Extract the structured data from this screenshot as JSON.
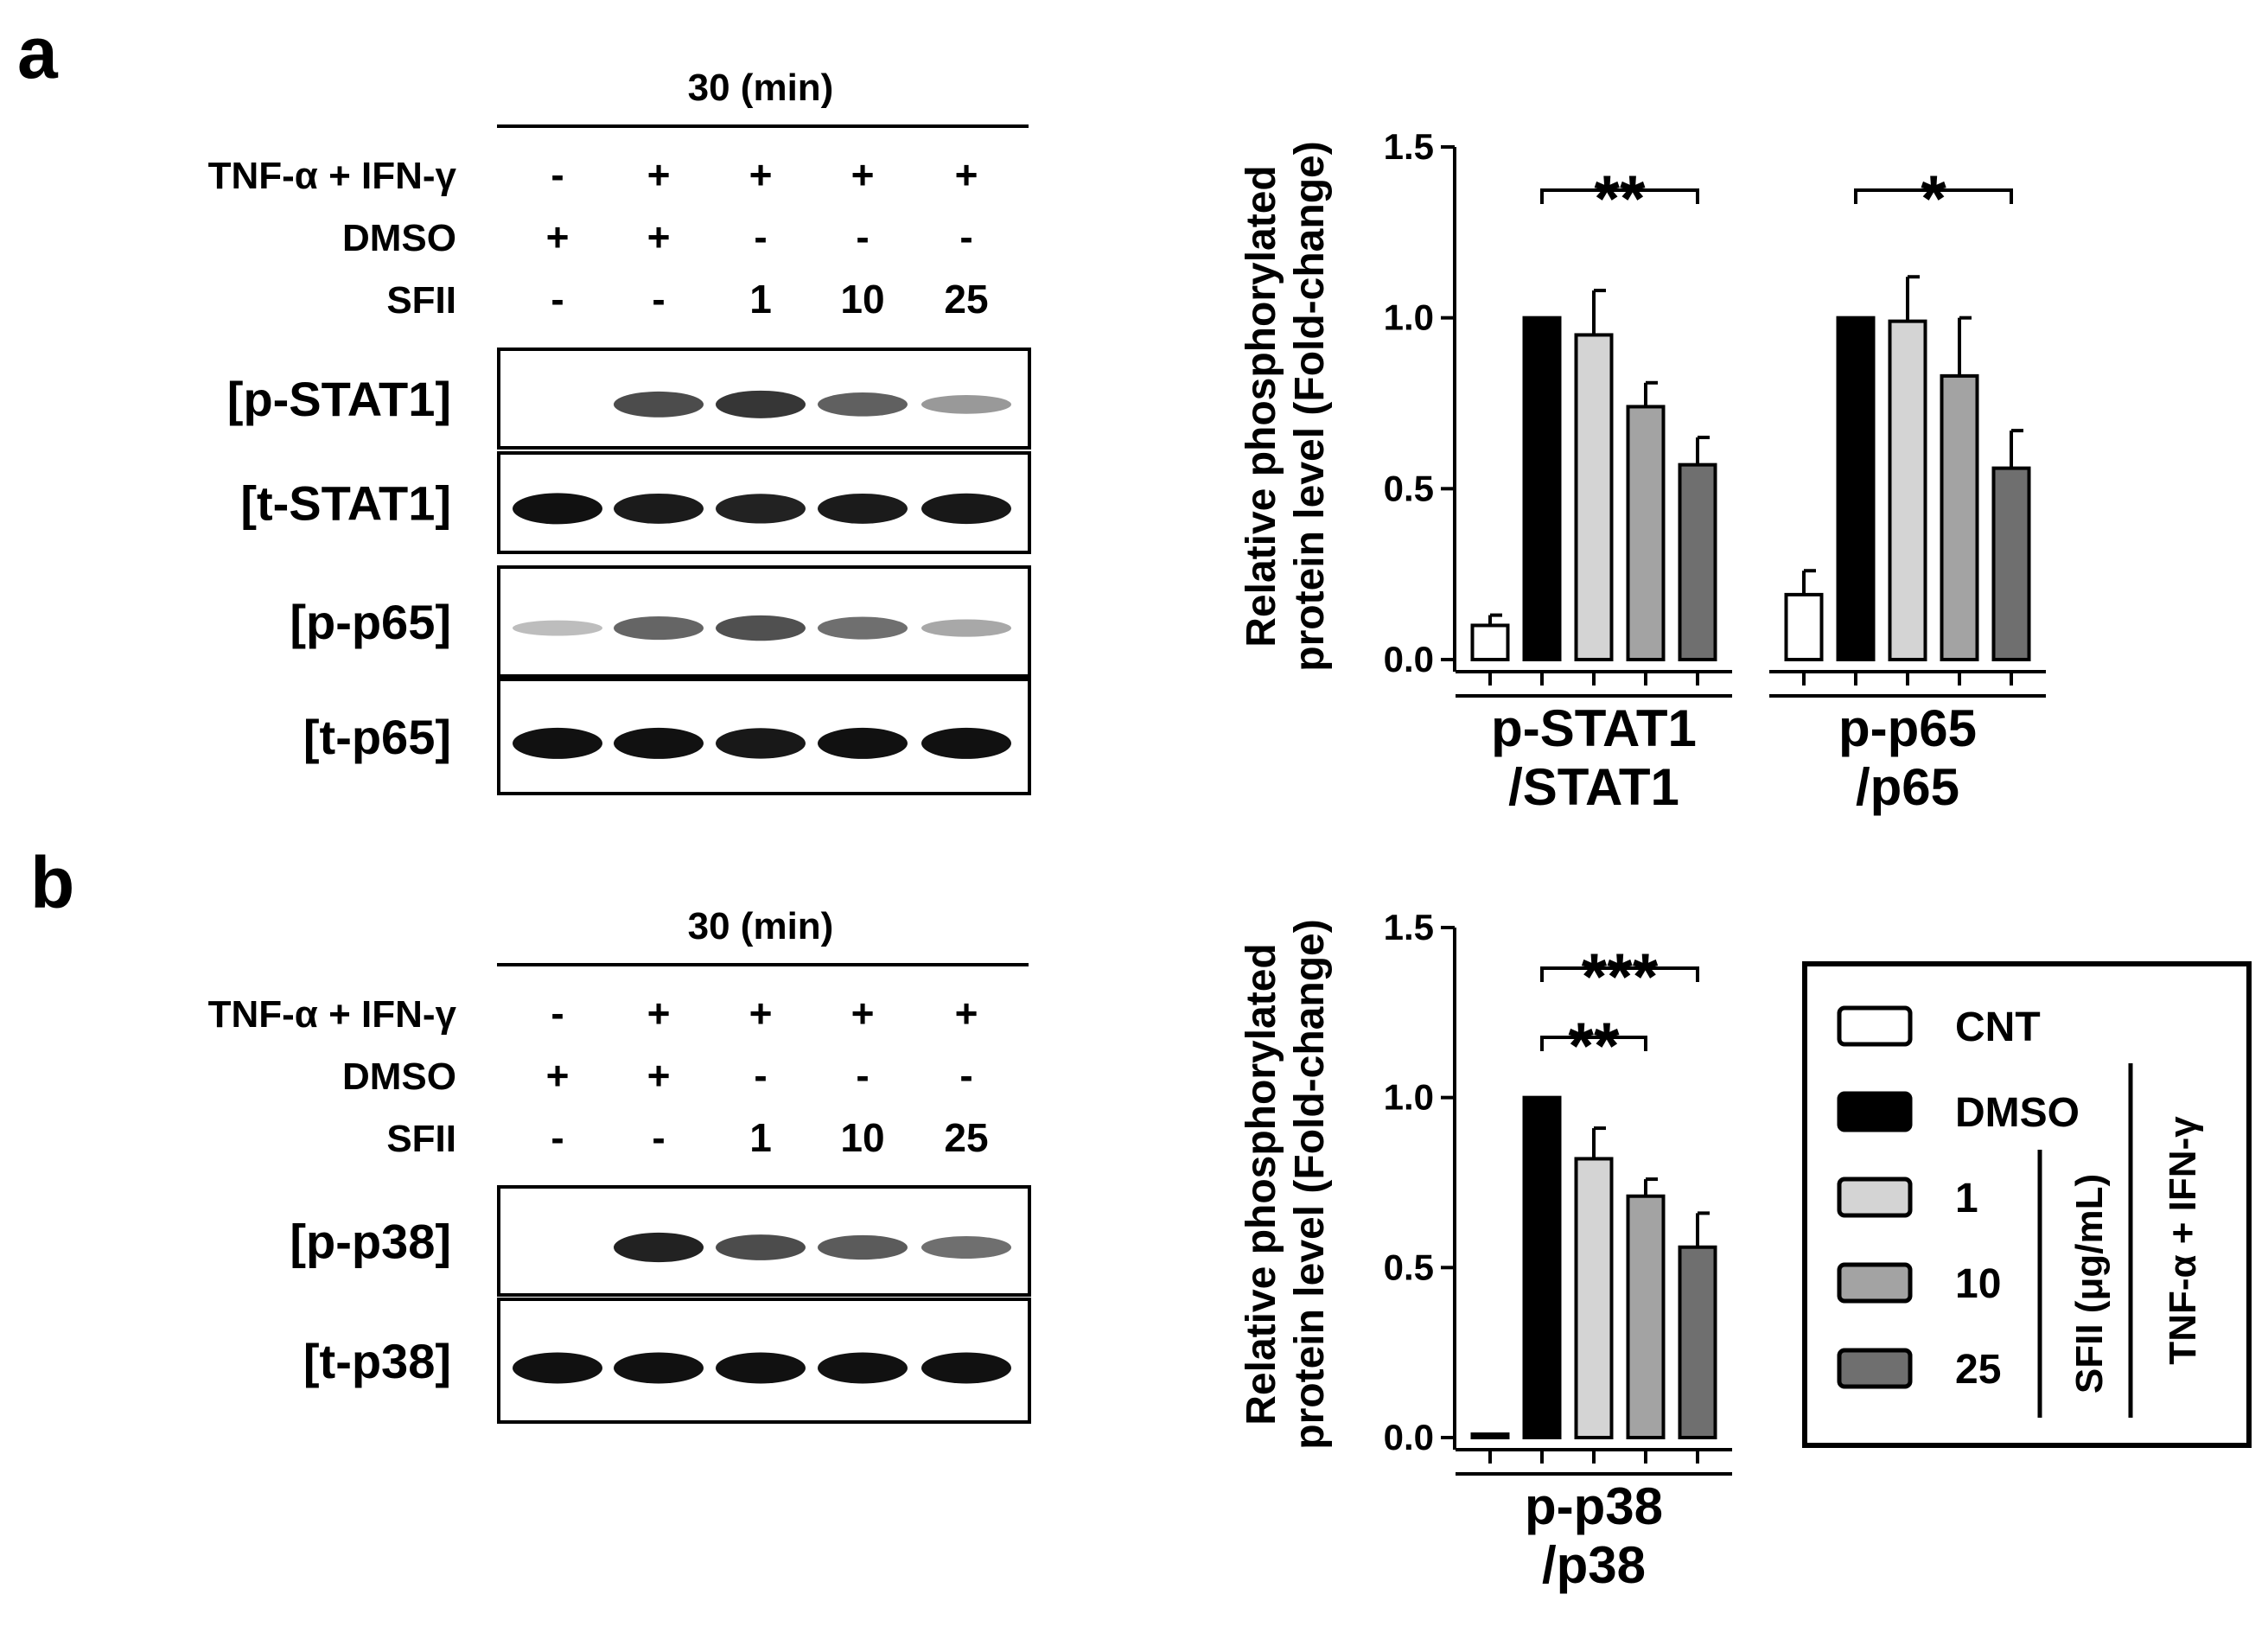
{
  "colors": {
    "CNT": "#ffffff",
    "DMSO": "#000000",
    "SFII_1": "#d4d4d4",
    "SFII_10": "#a3a3a3",
    "SFII_25": "#6f6f6f",
    "axis": "#000000"
  },
  "panels": [
    {
      "id": "a",
      "letter": "a",
      "blot": {
        "time_label": "30 (min)",
        "conditions": [
          {
            "label": "TNF-α + IFN-γ",
            "values": [
              "-",
              "+",
              "+",
              "+",
              "+"
            ]
          },
          {
            "label": "DMSO",
            "values": [
              "+",
              "+",
              "-",
              "-",
              "-"
            ]
          },
          {
            "label": "SFII",
            "values": [
              "-",
              "-",
              "1",
              "10",
              "25"
            ]
          }
        ],
        "bands": [
          {
            "label": "[p-STAT1]",
            "intensities": [
              0.0,
              0.72,
              0.82,
              0.62,
              0.35
            ]
          },
          {
            "label": "[t-STAT1]",
            "intensities": [
              1.0,
              0.95,
              0.92,
              0.95,
              0.97
            ]
          },
          {
            "label": "[p-p65]",
            "intensities": [
              0.18,
              0.6,
              0.7,
              0.55,
              0.28
            ]
          },
          {
            "label": "[t-p65]",
            "intensities": [
              1.0,
              1.0,
              0.97,
              1.0,
              1.0
            ]
          }
        ]
      }
    },
    {
      "id": "b",
      "letter": "b",
      "blot": {
        "time_label": "30 (min)",
        "conditions": [
          {
            "label": "TNF-α + IFN-γ",
            "values": [
              "-",
              "+",
              "+",
              "+",
              "+"
            ]
          },
          {
            "label": "DMSO",
            "values": [
              "+",
              "+",
              "-",
              "-",
              "-"
            ]
          },
          {
            "label": "SFII",
            "values": [
              "-",
              "-",
              "1",
              "10",
              "25"
            ]
          }
        ],
        "bands": [
          {
            "label": "[p-p38]",
            "intensities": [
              0.0,
              0.92,
              0.72,
              0.65,
              0.55
            ]
          },
          {
            "label": "[t-p38]",
            "intensities": [
              1.0,
              1.0,
              1.0,
              1.0,
              1.0
            ]
          }
        ]
      }
    }
  ],
  "chart_data": [
    {
      "type": "bar",
      "panel": "a",
      "ylabel": [
        "Relative phosphorylated",
        "protein level (Fold-change)"
      ],
      "ylim": [
        0,
        1.5
      ],
      "yticks": [
        "0.0",
        "0.5",
        "1.0",
        "1.5"
      ],
      "groups": [
        {
          "label": [
            "p-STAT1",
            "/STAT1"
          ],
          "series": [
            {
              "name": "CNT",
              "value": 0.1,
              "error": 0.03
            },
            {
              "name": "DMSO",
              "value": 1.0,
              "error": 0.0
            },
            {
              "name": "1",
              "value": 0.95,
              "error": 0.13
            },
            {
              "name": "10",
              "value": 0.74,
              "error": 0.07
            },
            {
              "name": "25",
              "value": 0.57,
              "error": 0.08
            }
          ],
          "significance": [
            {
              "label": "**",
              "from": 1,
              "to": 4
            }
          ]
        },
        {
          "label": [
            "p-p65",
            "/p65"
          ],
          "series": [
            {
              "name": "CNT",
              "value": 0.19,
              "error": 0.07
            },
            {
              "name": "DMSO",
              "value": 1.0,
              "error": 0.0
            },
            {
              "name": "1",
              "value": 0.99,
              "error": 0.13
            },
            {
              "name": "10",
              "value": 0.83,
              "error": 0.17
            },
            {
              "name": "25",
              "value": 0.56,
              "error": 0.11
            }
          ],
          "significance": [
            {
              "label": "*",
              "from": 1,
              "to": 4
            }
          ]
        }
      ]
    },
    {
      "type": "bar",
      "panel": "b",
      "ylabel": [
        "Relative phosphorylated",
        "protein level (Fold-change)"
      ],
      "ylim": [
        0,
        1.5
      ],
      "yticks": [
        "0.0",
        "0.5",
        "1.0",
        "1.5"
      ],
      "groups": [
        {
          "label": [
            "p-p38",
            "/p38"
          ],
          "series": [
            {
              "name": "CNT",
              "value": 0.01,
              "error": 0.0
            },
            {
              "name": "DMSO",
              "value": 1.0,
              "error": 0.0
            },
            {
              "name": "1",
              "value": 0.82,
              "error": 0.09
            },
            {
              "name": "10",
              "value": 0.71,
              "error": 0.05
            },
            {
              "name": "25",
              "value": 0.56,
              "error": 0.1
            }
          ],
          "significance": [
            {
              "label": "***",
              "from": 1,
              "to": 4
            },
            {
              "label": "**",
              "from": 1,
              "to": 3
            }
          ]
        }
      ]
    }
  ],
  "legend": {
    "entries": [
      {
        "name": "CNT",
        "label": "CNT"
      },
      {
        "name": "DMSO",
        "label": "DMSO"
      },
      {
        "name": "1",
        "label": "1"
      },
      {
        "name": "10",
        "label": "10"
      },
      {
        "name": "25",
        "label": "25"
      }
    ],
    "sfii_bracket_label": "SFII (μg/mL)",
    "treatment_bracket_label": "TNF-α + IFN-γ"
  }
}
